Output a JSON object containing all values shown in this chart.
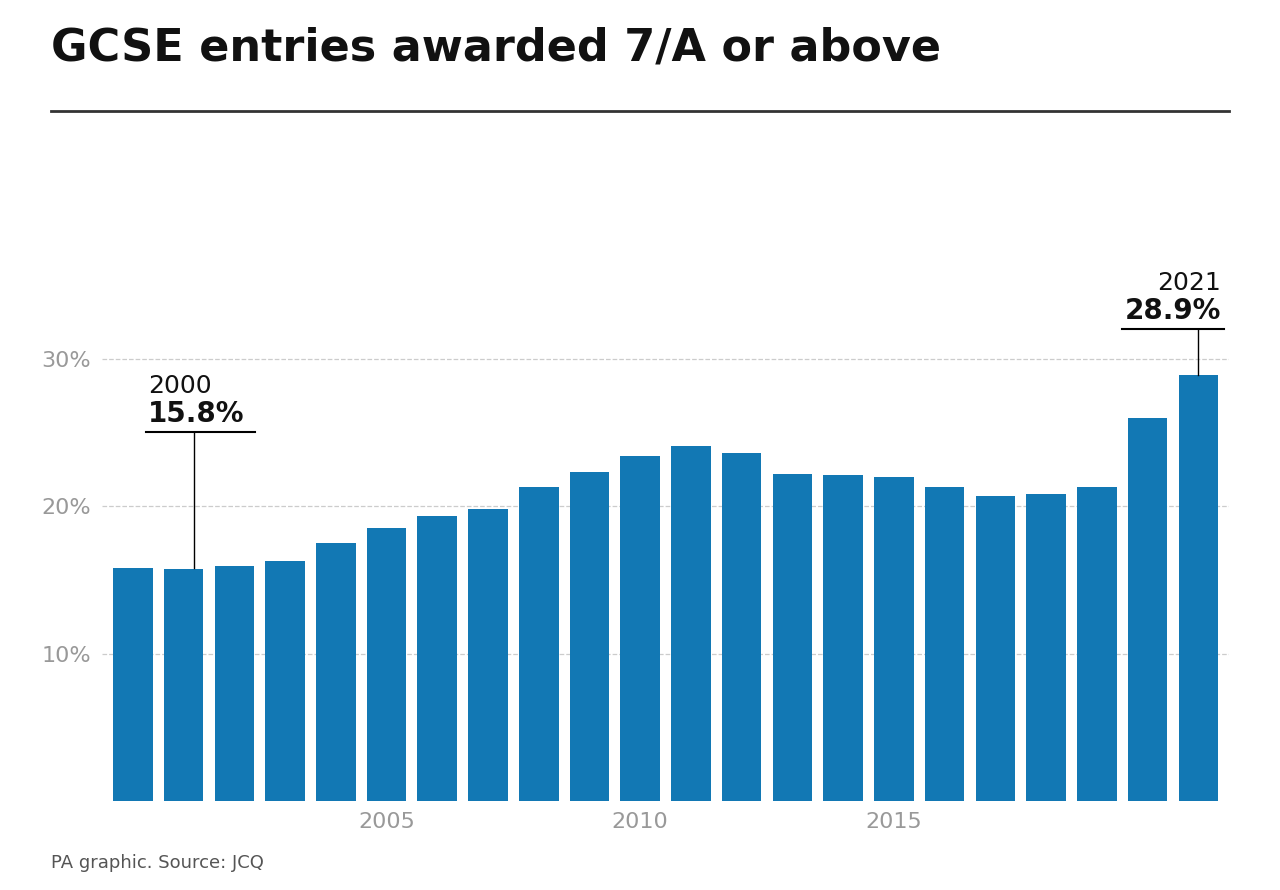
{
  "title": "GCSE entries awarded 7/A or above",
  "years": [
    2000,
    2001,
    2002,
    2003,
    2004,
    2005,
    2006,
    2007,
    2008,
    2009,
    2010,
    2011,
    2012,
    2013,
    2014,
    2015,
    2016,
    2017,
    2018,
    2019,
    2020,
    2021
  ],
  "values": [
    15.8,
    15.7,
    15.9,
    16.3,
    17.5,
    18.5,
    19.3,
    19.8,
    21.3,
    22.3,
    23.4,
    24.1,
    23.6,
    22.2,
    22.1,
    22.0,
    21.3,
    20.7,
    20.8,
    21.3,
    26.0,
    28.9
  ],
  "bar_color": "#1278b4",
  "annotation_2000_year": "2000",
  "annotation_2000_value": "15.8%",
  "annotation_2021_year": "2021",
  "annotation_2021_value": "28.9%",
  "ytick_labels": [
    "10%",
    "20%",
    "30%"
  ],
  "ytick_values": [
    10,
    20,
    30
  ],
  "xtick_years": [
    2005,
    2010,
    2015
  ],
  "ylim": [
    0,
    35
  ],
  "source_text": "PA graphic. Source: JCQ",
  "background_color": "#ffffff",
  "title_fontsize": 32,
  "axis_fontsize": 16,
  "annotation_year_fontsize": 18,
  "annotation_value_fontsize": 20,
  "source_fontsize": 13
}
